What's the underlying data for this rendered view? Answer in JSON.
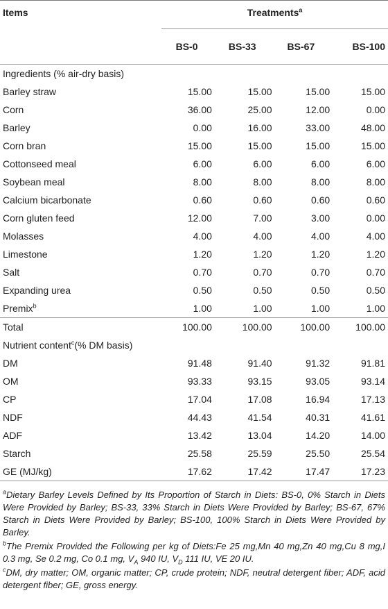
{
  "header": {
    "items_label": "Items",
    "treatments_label": "Treatments",
    "treatments_sup": "a",
    "columns": [
      "BS-0",
      "BS-33",
      "BS-67",
      "BS-100"
    ]
  },
  "ingredients_section": {
    "label": "Ingredients (% air-dry basis)",
    "rows": [
      {
        "name": "Barley straw",
        "sup": "",
        "values": [
          "15.00",
          "15.00",
          "15.00",
          "15.00"
        ]
      },
      {
        "name": "Corn",
        "sup": "",
        "values": [
          "36.00",
          "25.00",
          "12.00",
          "0.00"
        ]
      },
      {
        "name": "Barley",
        "sup": "",
        "values": [
          "0.00",
          "16.00",
          "33.00",
          "48.00"
        ]
      },
      {
        "name": "Corn bran",
        "sup": "",
        "values": [
          "15.00",
          "15.00",
          "15.00",
          "15.00"
        ]
      },
      {
        "name": "Cottonseed meal",
        "sup": "",
        "values": [
          "6.00",
          "6.00",
          "6.00",
          "6.00"
        ]
      },
      {
        "name": "Soybean meal",
        "sup": "",
        "values": [
          "8.00",
          "8.00",
          "8.00",
          "8.00"
        ]
      },
      {
        "name": "Calcium bicarbonate",
        "sup": "",
        "values": [
          "0.60",
          "0.60",
          "0.60",
          "0.60"
        ]
      },
      {
        "name": "Corn gluten feed",
        "sup": "",
        "values": [
          "12.00",
          "7.00",
          "3.00",
          "0.00"
        ]
      },
      {
        "name": "Molasses",
        "sup": "",
        "values": [
          "4.00",
          "4.00",
          "4.00",
          "4.00"
        ]
      },
      {
        "name": "Limestone",
        "sup": "",
        "values": [
          "1.20",
          "1.20",
          "1.20",
          "1.20"
        ]
      },
      {
        "name": "Salt",
        "sup": "",
        "values": [
          "0.70",
          "0.70",
          "0.70",
          "0.70"
        ]
      },
      {
        "name": "Expanding urea",
        "sup": "",
        "values": [
          "0.50",
          "0.50",
          "0.50",
          "0.50"
        ]
      },
      {
        "name": "Premix",
        "sup": "b",
        "values": [
          "1.00",
          "1.00",
          "1.00",
          "1.00"
        ]
      },
      {
        "name": "Total",
        "sup": "",
        "values": [
          "100.00",
          "100.00",
          "100.00",
          "100.00"
        ]
      }
    ]
  },
  "nutrient_section": {
    "label_pre": "Nutrient content",
    "label_sup": "c",
    "label_post": "(% DM basis)",
    "rows": [
      {
        "name": "DM",
        "values": [
          "91.48",
          "91.40",
          "91.32",
          "91.81"
        ]
      },
      {
        "name": "OM",
        "values": [
          "93.33",
          "93.15",
          "93.05",
          "93.14"
        ]
      },
      {
        "name": "CP",
        "values": [
          "17.04",
          "17.08",
          "16.94",
          "17.13"
        ]
      },
      {
        "name": "NDF",
        "values": [
          "44.43",
          "41.54",
          "40.31",
          "41.61"
        ]
      },
      {
        "name": "ADF",
        "values": [
          "13.42",
          "13.04",
          "14.20",
          "14.00"
        ]
      },
      {
        "name": "Starch",
        "values": [
          "25.58",
          "25.59",
          "25.50",
          "25.54"
        ]
      },
      {
        "name": "GE (MJ/kg)",
        "values": [
          "17.62",
          "17.42",
          "17.47",
          "17.23"
        ]
      }
    ]
  },
  "footnotes": {
    "a_mark": "a",
    "a_text": "Dietary Barley Levels Defined by Its Proportion of Starch in Diets: BS-0, 0% Starch in Diets Were Provided by Barley; BS-33, 33% Starch in Diets Were Provided by Barley; BS-67, 67% Starch in Diets Were Provided by Barley; BS-100, 100% Starch in Diets Were Provided by Barley.",
    "b_mark": "b",
    "b_text_1": "The Premix Provided the Following per kg of Diets:Fe 25 mg,Mn 40 mg,Zn 40 mg,Cu 8 mg,I 0.3 mg, Se 0.2 mg, Co 0.1 mg, V",
    "b_sub_a": "A",
    "b_text_2": " 940 IU, V",
    "b_sub_d": "D",
    "b_text_3": " 111 IU, VE 20 IU.",
    "c_mark": "c",
    "c_text": "DM, dry matter; OM, organic matter; CP, crude protein; NDF, neutral detergent fiber; ADF, acid detergent fiber; GE, gross energy."
  }
}
